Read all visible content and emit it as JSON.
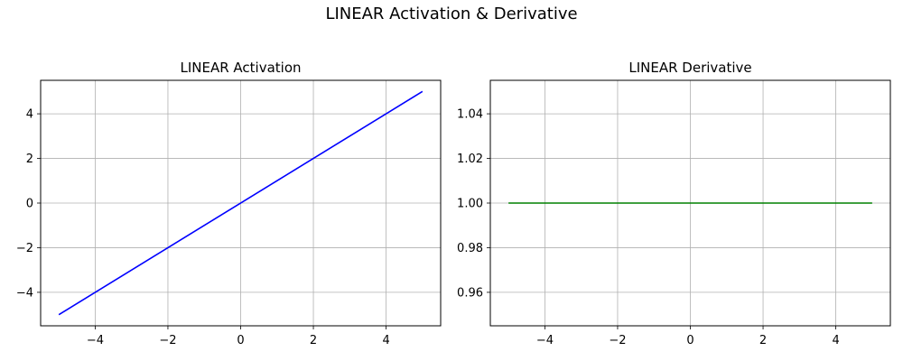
{
  "figure": {
    "suptitle": "LINEAR Activation & Derivative"
  },
  "chart_data": [
    {
      "type": "line",
      "title": "LINEAR Activation",
      "xlabel": "",
      "ylabel": "",
      "xlim": [
        -5.5,
        5.5
      ],
      "ylim": [
        -5.5,
        5.5
      ],
      "xticks": [
        -4,
        -2,
        0,
        2,
        4
      ],
      "xtick_labels": [
        "−4",
        "−2",
        "0",
        "2",
        "4"
      ],
      "yticks": [
        -4,
        -2,
        0,
        2,
        4
      ],
      "ytick_labels": [
        "−4",
        "−2",
        "0",
        "2",
        "4"
      ],
      "grid": true,
      "series": [
        {
          "color": "#0000ff",
          "x": [
            -5,
            5
          ],
          "y": [
            -5,
            5
          ]
        }
      ]
    },
    {
      "type": "line",
      "title": "LINEAR Derivative",
      "xlabel": "",
      "ylabel": "",
      "xlim": [
        -5.5,
        5.5
      ],
      "ylim": [
        0.945,
        1.055
      ],
      "xticks": [
        -4,
        -2,
        0,
        2,
        4
      ],
      "xtick_labels": [
        "−4",
        "−2",
        "0",
        "2",
        "4"
      ],
      "yticks": [
        0.96,
        0.98,
        1.0,
        1.02,
        1.04
      ],
      "ytick_labels": [
        "0.96",
        "0.98",
        "1.00",
        "1.02",
        "1.04"
      ],
      "grid": true,
      "series": [
        {
          "color": "#008000",
          "x": [
            -5,
            5
          ],
          "y": [
            1.0,
            1.0
          ]
        }
      ]
    }
  ]
}
